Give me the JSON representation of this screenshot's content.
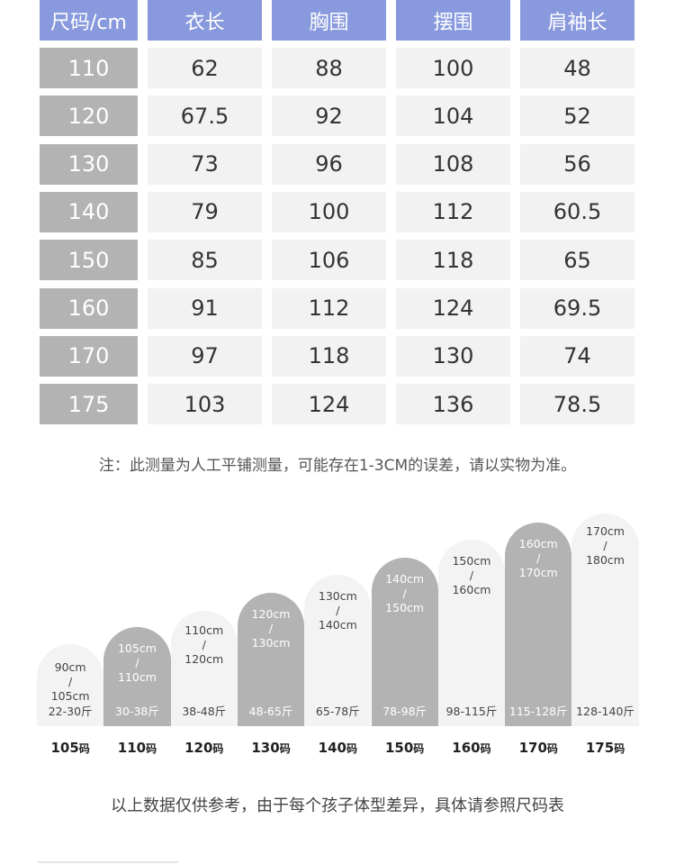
{
  "table": {
    "headers": [
      "尺码/cm",
      "衣长",
      "胸围",
      "摆围",
      "肩袖长"
    ],
    "rows": [
      [
        "110",
        "62",
        "88",
        "100",
        "48"
      ],
      [
        "120",
        "67.5",
        "92",
        "104",
        "52"
      ],
      [
        "130",
        "73",
        "96",
        "108",
        "56"
      ],
      [
        "140",
        "79",
        "100",
        "112",
        "60.5"
      ],
      [
        "150",
        "85",
        "106",
        "118",
        "65"
      ],
      [
        "160",
        "91",
        "112",
        "124",
        "69.5"
      ],
      [
        "170",
        "97",
        "118",
        "130",
        "74"
      ],
      [
        "175",
        "103",
        "124",
        "136",
        "78.5"
      ]
    ]
  },
  "note": "注：此测量为人工平铺测量，可能存在1-3CM的误差，请以实物为准。",
  "chart": {
    "columns": [
      {
        "size": "105",
        "unit": "码",
        "height_from": "90cm",
        "sep": "/",
        "height_to": "105cm",
        "weight": "22-30斤",
        "tone": "light"
      },
      {
        "size": "110",
        "unit": "码",
        "height_from": "105cm",
        "sep": "/",
        "height_to": "110cm",
        "weight": "30-38斤",
        "tone": "dark"
      },
      {
        "size": "120",
        "unit": "码",
        "height_from": "110cm",
        "sep": "/",
        "height_to": "120cm",
        "weight": "38-48斤",
        "tone": "light"
      },
      {
        "size": "130",
        "unit": "码",
        "height_from": "120cm",
        "sep": "/",
        "height_to": "130cm",
        "weight": "48-65斤",
        "tone": "dark"
      },
      {
        "size": "140",
        "unit": "码",
        "height_from": "130cm",
        "sep": "/",
        "height_to": "140cm",
        "weight": "65-78斤",
        "tone": "light"
      },
      {
        "size": "150",
        "unit": "码",
        "height_from": "140cm",
        "sep": "/",
        "height_to": "150cm",
        "weight": "78-98斤",
        "tone": "dark"
      },
      {
        "size": "160",
        "unit": "码",
        "height_from": "150cm",
        "sep": "/",
        "height_to": "160cm",
        "weight": "98-115斤",
        "tone": "light"
      },
      {
        "size": "170",
        "unit": "码",
        "height_from": "160cm",
        "sep": "/",
        "height_to": "170cm",
        "weight": "115-128斤",
        "tone": "dark"
      },
      {
        "size": "175",
        "unit": "码",
        "height_from": "170cm",
        "sep": "/",
        "height_to": "180cm",
        "weight": "128-140斤",
        "tone": "light"
      }
    ]
  },
  "footer": "以上数据仅供参考，由于每个孩子体型差异，具体请参照尺码表"
}
